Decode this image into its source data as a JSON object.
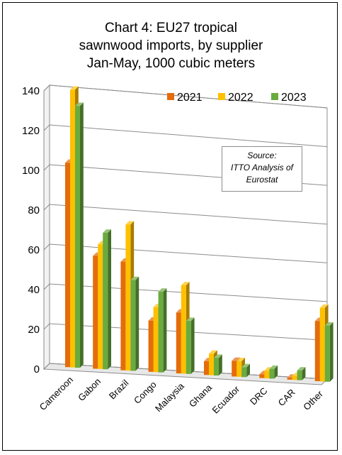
{
  "chart_data": {
    "type": "bar",
    "title_lines": [
      "Chart 4: EU27 tropical",
      "sawnwood imports, by supplier",
      "Jan-May, 1000 cubic meters"
    ],
    "categories": [
      "Cameroon",
      "Gabon",
      "Brazil",
      "Congo",
      "Malaysia",
      "Ghana",
      "Ecuador",
      "DRC",
      "CAR",
      "Other"
    ],
    "series": [
      {
        "name": "2021",
        "color": "#e46c0a",
        "values": [
          103,
          57,
          55,
          26,
          31,
          7,
          8,
          2,
          1,
          31
        ]
      },
      {
        "name": "2022",
        "color": "#ffc000",
        "values": [
          140,
          63,
          74,
          33,
          45,
          11,
          8,
          4,
          2,
          38
        ]
      },
      {
        "name": "2023",
        "color": "#6aab3f",
        "values": [
          132,
          69,
          46,
          41,
          27,
          9,
          5,
          5,
          5,
          29
        ]
      }
    ],
    "y_ticks": [
      "0",
      "20",
      "40",
      "60",
      "80",
      "100",
      "120",
      "140"
    ],
    "ylim": [
      0,
      140
    ],
    "legend_position": "top-right",
    "grid": true,
    "annotation_lines": [
      "Source:",
      "ITTO Analysis of",
      "Eurostat"
    ]
  }
}
